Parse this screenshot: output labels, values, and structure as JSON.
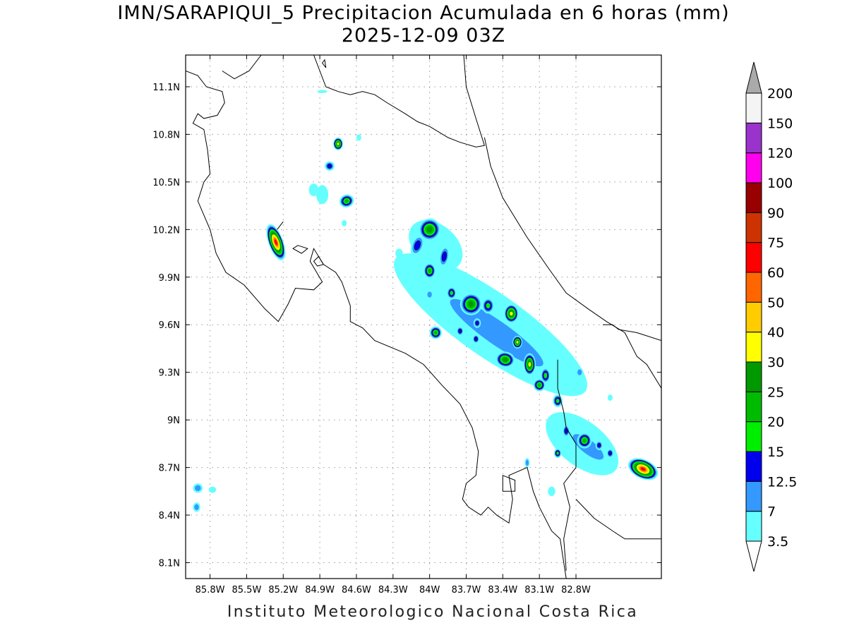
{
  "title": {
    "line1": "IMN/SARAPIQUI_5 Precipitacion Acumulada en 6 horas (mm)",
    "line2": "2025-12-09 03Z"
  },
  "credit": "Instituto Meteorologico Nacional Costa Rica",
  "map": {
    "lon_range": [
      -86.0,
      -82.1
    ],
    "lat_range": [
      8.0,
      11.3
    ],
    "lon_ticks": [
      "85.8W",
      "85.5W",
      "85.2W",
      "84.9W",
      "84.6W",
      "84.3W",
      "84W",
      "83.7W",
      "83.4W",
      "83.1W",
      "82.8W"
    ],
    "lon_tick_values": [
      -85.8,
      -85.5,
      -85.2,
      -84.9,
      -84.6,
      -84.3,
      -84.0,
      -83.7,
      -83.4,
      -83.1,
      -82.8
    ],
    "lat_ticks": [
      "11.1N",
      "10.8N",
      "10.5N",
      "10.2N",
      "9.9N",
      "9.6N",
      "9.3N",
      "9N",
      "8.7N",
      "8.4N",
      "8.1N"
    ],
    "lat_tick_values": [
      11.1,
      10.8,
      10.5,
      10.2,
      9.9,
      9.6,
      9.3,
      9.0,
      8.7,
      8.4,
      8.1
    ],
    "grid": "dotted"
  },
  "colorbar": {
    "labels": [
      "3.5",
      "7",
      "12.5",
      "15",
      "20",
      "25",
      "30",
      "40",
      "50",
      "60",
      "75",
      "90",
      "100",
      "120",
      "150",
      "200"
    ],
    "colors": [
      "#66ffff",
      "#3399ff",
      "#0000ee",
      "#00ee00",
      "#00bb00",
      "#009900",
      "#ffff00",
      "#ffcc00",
      "#ff6600",
      "#ff0000",
      "#cc3300",
      "#990000",
      "#ff00ee",
      "#9933cc",
      "#f4f4f4"
    ],
    "over_color": "#aaaaaa",
    "under_color": "#ffffff"
  },
  "levels": [
    "#66ffff",
    "#3399ff",
    "#0000ee",
    "#00ee00",
    "#00bb00",
    "#009900",
    "#ffff00",
    "#ffcc00",
    "#ff6600",
    "#ff0000",
    "#cc3300",
    "#990000"
  ],
  "blobs": [
    {
      "lon": -85.26,
      "lat": 10.12,
      "rx": 0.06,
      "ry": 0.12,
      "rot": -20,
      "level": 9
    },
    {
      "lon": -84.75,
      "lat": 10.74,
      "rx": 0.04,
      "ry": 0.04,
      "rot": 0,
      "level": 6
    },
    {
      "lon": -84.82,
      "lat": 10.6,
      "rx": 0.04,
      "ry": 0.03,
      "rot": 0,
      "level": 2
    },
    {
      "lon": -84.68,
      "lat": 10.38,
      "rx": 0.06,
      "ry": 0.04,
      "rot": -20,
      "level": 4
    },
    {
      "lon": -84.95,
      "lat": 10.45,
      "rx": 0.04,
      "ry": 0.04,
      "rot": 0,
      "level": 0
    },
    {
      "lon": -84.88,
      "lat": 10.42,
      "rx": 0.05,
      "ry": 0.06,
      "rot": 0,
      "level": 0
    },
    {
      "lon": -84.7,
      "lat": 10.24,
      "rx": 0.02,
      "ry": 0.02,
      "rot": 0,
      "level": 0
    },
    {
      "lon": -84.58,
      "lat": 10.78,
      "rx": 0.02,
      "ry": 0.02,
      "rot": 0,
      "level": 0
    },
    {
      "lon": -84.88,
      "lat": 11.07,
      "rx": 0.04,
      "ry": 0.01,
      "rot": 0,
      "level": 0
    },
    {
      "lon": -84.0,
      "lat": 10.2,
      "rx": 0.09,
      "ry": 0.07,
      "rot": 30,
      "level": 5
    },
    {
      "lon": -84.1,
      "lat": 10.1,
      "rx": 0.05,
      "ry": 0.07,
      "rot": 20,
      "level": 2
    },
    {
      "lon": -84.0,
      "lat": 9.94,
      "rx": 0.05,
      "ry": 0.05,
      "rot": 0,
      "level": 4
    },
    {
      "lon": -83.88,
      "lat": 10.03,
      "rx": 0.04,
      "ry": 0.07,
      "rot": 10,
      "level": 2
    },
    {
      "lon": -83.82,
      "lat": 9.8,
      "rx": 0.04,
      "ry": 0.04,
      "rot": 0,
      "level": 3
    },
    {
      "lon": -84.0,
      "lat": 9.79,
      "rx": 0.03,
      "ry": 0.03,
      "rot": 0,
      "level": 1
    },
    {
      "lon": -84.25,
      "lat": 10.05,
      "rx": 0.03,
      "ry": 0.03,
      "rot": 0,
      "level": 0
    },
    {
      "lon": -83.66,
      "lat": 9.73,
      "rx": 0.09,
      "ry": 0.07,
      "rot": 10,
      "level": 5
    },
    {
      "lon": -83.52,
      "lat": 9.72,
      "rx": 0.05,
      "ry": 0.05,
      "rot": 0,
      "level": 3
    },
    {
      "lon": -83.33,
      "lat": 9.67,
      "rx": 0.06,
      "ry": 0.06,
      "rot": 0,
      "level": 6
    },
    {
      "lon": -83.61,
      "lat": 9.61,
      "rx": 0.03,
      "ry": 0.03,
      "rot": 0,
      "level": 2
    },
    {
      "lon": -83.95,
      "lat": 9.55,
      "rx": 0.05,
      "ry": 0.04,
      "rot": 0,
      "level": 4
    },
    {
      "lon": -83.75,
      "lat": 9.56,
      "rx": 0.03,
      "ry": 0.03,
      "rot": 0,
      "level": 2
    },
    {
      "lon": -83.62,
      "lat": 9.51,
      "rx": 0.03,
      "ry": 0.03,
      "rot": 0,
      "level": 2
    },
    {
      "lon": -83.28,
      "lat": 9.49,
      "rx": 0.04,
      "ry": 0.04,
      "rot": 0,
      "level": 6
    },
    {
      "lon": -83.38,
      "lat": 9.38,
      "rx": 0.08,
      "ry": 0.05,
      "rot": 10,
      "level": 5
    },
    {
      "lon": -83.18,
      "lat": 9.35,
      "rx": 0.05,
      "ry": 0.07,
      "rot": 0,
      "level": 6
    },
    {
      "lon": -83.05,
      "lat": 9.28,
      "rx": 0.04,
      "ry": 0.05,
      "rot": 0,
      "level": 3
    },
    {
      "lon": -83.1,
      "lat": 9.22,
      "rx": 0.05,
      "ry": 0.04,
      "rot": 0,
      "level": 4
    },
    {
      "lon": -82.95,
      "lat": 9.12,
      "rx": 0.04,
      "ry": 0.04,
      "rot": 0,
      "level": 3
    },
    {
      "lon": -82.88,
      "lat": 8.93,
      "rx": 0.03,
      "ry": 0.04,
      "rot": 0,
      "level": 2
    },
    {
      "lon": -82.73,
      "lat": 8.87,
      "rx": 0.06,
      "ry": 0.05,
      "rot": 0,
      "level": 4
    },
    {
      "lon": -82.61,
      "lat": 8.84,
      "rx": 0.03,
      "ry": 0.03,
      "rot": 0,
      "level": 2
    },
    {
      "lon": -82.95,
      "lat": 8.79,
      "rx": 0.03,
      "ry": 0.03,
      "rot": 0,
      "level": 3
    },
    {
      "lon": -82.25,
      "lat": 8.69,
      "rx": 0.13,
      "ry": 0.06,
      "rot": 25,
      "level": 9
    },
    {
      "lon": -82.52,
      "lat": 8.79,
      "rx": 0.03,
      "ry": 0.03,
      "rot": 0,
      "level": 2
    },
    {
      "lon": -82.77,
      "lat": 9.3,
      "rx": 0.03,
      "ry": 0.03,
      "rot": 0,
      "level": 1
    },
    {
      "lon": -82.52,
      "lat": 9.14,
      "rx": 0.02,
      "ry": 0.02,
      "rot": 0,
      "level": 0
    },
    {
      "lon": -83.2,
      "lat": 8.73,
      "rx": 0.02,
      "ry": 0.03,
      "rot": 0,
      "level": 1
    },
    {
      "lon": -83.0,
      "lat": 8.55,
      "rx": 0.03,
      "ry": 0.03,
      "rot": 0,
      "level": 0
    },
    {
      "lon": -85.9,
      "lat": 8.57,
      "rx": 0.04,
      "ry": 0.03,
      "rot": 0,
      "level": 1
    },
    {
      "lon": -85.91,
      "lat": 8.45,
      "rx": 0.03,
      "ry": 0.03,
      "rot": 0,
      "level": 1
    },
    {
      "lon": -85.78,
      "lat": 8.56,
      "rx": 0.03,
      "ry": 0.02,
      "rot": 0,
      "level": 0
    }
  ],
  "bands": [
    {
      "lon": -83.5,
      "lat": 9.6,
      "rx": 0.95,
      "ry": 0.2,
      "rot": 35,
      "level": 0
    },
    {
      "lon": -83.45,
      "lat": 9.55,
      "rx": 0.75,
      "ry": 0.12,
      "rot": 35,
      "level": 1
    },
    {
      "lon": -82.75,
      "lat": 8.85,
      "rx": 0.35,
      "ry": 0.14,
      "rot": 38,
      "level": 0
    },
    {
      "lon": -82.7,
      "lat": 8.83,
      "rx": 0.25,
      "ry": 0.07,
      "rot": 38,
      "level": 1
    },
    {
      "lon": -83.95,
      "lat": 10.1,
      "rx": 0.25,
      "ry": 0.13,
      "rot": 40,
      "level": 0
    }
  ],
  "coast": {
    "main": [
      [
        -86.0,
        11.2
      ],
      [
        -85.9,
        11.17
      ],
      [
        -85.83,
        11.1
      ],
      [
        -85.7,
        11.07
      ],
      [
        -85.68,
        11.0
      ],
      [
        -85.74,
        10.92
      ],
      [
        -85.85,
        10.9
      ],
      [
        -85.9,
        10.93
      ],
      [
        -85.94,
        10.87
      ],
      [
        -85.85,
        10.83
      ],
      [
        -85.82,
        10.7
      ],
      [
        -85.8,
        10.55
      ],
      [
        -85.85,
        10.5
      ],
      [
        -85.9,
        10.38
      ],
      [
        -85.8,
        10.2
      ],
      [
        -85.75,
        10.05
      ],
      [
        -85.67,
        9.93
      ],
      [
        -85.52,
        9.85
      ],
      [
        -85.35,
        9.7
      ],
      [
        -85.24,
        9.62
      ],
      [
        -85.16,
        9.73
      ],
      [
        -85.1,
        9.83
      ],
      [
        -84.95,
        9.82
      ],
      [
        -84.88,
        9.87
      ],
      [
        -84.98,
        10.0
      ],
      [
        -84.95,
        10.08
      ],
      [
        -84.87,
        9.98
      ],
      [
        -84.77,
        9.93
      ],
      [
        -84.72,
        9.87
      ],
      [
        -84.65,
        9.72
      ],
      [
        -84.65,
        9.62
      ],
      [
        -84.55,
        9.58
      ],
      [
        -84.45,
        9.5
      ],
      [
        -84.2,
        9.42
      ],
      [
        -84.05,
        9.35
      ],
      [
        -83.9,
        9.22
      ],
      [
        -83.75,
        9.1
      ],
      [
        -83.65,
        8.95
      ],
      [
        -83.6,
        8.8
      ],
      [
        -83.62,
        8.65
      ],
      [
        -83.7,
        8.6
      ],
      [
        -83.73,
        8.5
      ],
      [
        -83.68,
        8.45
      ],
      [
        -83.58,
        8.4
      ],
      [
        -83.52,
        8.45
      ],
      [
        -83.45,
        8.4
      ],
      [
        -83.35,
        8.35
      ],
      [
        -83.32,
        8.5
      ],
      [
        -83.35,
        8.65
      ],
      [
        -83.2,
        8.7
      ],
      [
        -83.15,
        8.55
      ],
      [
        -83.1,
        8.45
      ],
      [
        -83.0,
        8.3
      ],
      [
        -82.93,
        8.25
      ],
      [
        -82.9,
        8.1
      ],
      [
        -82.88,
        8.0
      ]
    ],
    "north": [
      [
        -85.7,
        11.2
      ],
      [
        -85.6,
        11.15
      ],
      [
        -85.48,
        11.2
      ],
      [
        -85.38,
        11.3
      ]
    ],
    "lake": [
      [
        -84.95,
        11.3
      ],
      [
        -84.9,
        11.2
      ],
      [
        -84.85,
        11.1
      ],
      [
        -84.75,
        11.07
      ],
      [
        -84.65,
        11.05
      ],
      [
        -84.55,
        11.07
      ],
      [
        -84.45,
        11.05
      ],
      [
        -84.35,
        11.0
      ],
      [
        -84.2,
        10.93
      ],
      [
        -84.1,
        10.88
      ],
      [
        -84.0,
        10.85
      ],
      [
        -83.85,
        10.78
      ],
      [
        -83.75,
        10.75
      ],
      [
        -83.62,
        10.72
      ],
      [
        -83.55,
        10.73
      ],
      [
        -83.62,
        10.9
      ],
      [
        -83.7,
        11.1
      ],
      [
        -83.72,
        11.3
      ]
    ],
    "east": [
      [
        -83.55,
        10.78
      ],
      [
        -83.5,
        10.6
      ],
      [
        -83.4,
        10.4
      ],
      [
        -83.2,
        10.15
      ],
      [
        -83.02,
        9.95
      ],
      [
        -82.88,
        9.8
      ],
      [
        -82.7,
        9.7
      ],
      [
        -82.55,
        9.62
      ],
      [
        -82.4,
        9.55
      ],
      [
        -82.3,
        9.4
      ],
      [
        -82.22,
        9.35
      ],
      [
        -82.1,
        9.2
      ]
    ],
    "panama_border": [
      [
        -82.95,
        9.38
      ],
      [
        -82.95,
        9.2
      ],
      [
        -82.9,
        9.05
      ],
      [
        -82.88,
        8.95
      ],
      [
        -82.8,
        8.85
      ],
      [
        -82.8,
        8.7
      ],
      [
        -82.9,
        8.6
      ],
      [
        -82.85,
        8.45
      ],
      [
        -82.9,
        8.25
      ],
      [
        -82.88,
        8.05
      ]
    ],
    "nica_border": [
      [
        -85.2,
        10.25
      ],
      [
        -85.25,
        10.2
      ]
    ],
    "border_east": [
      [
        -82.58,
        9.6
      ],
      [
        -82.5,
        9.6
      ],
      [
        -82.45,
        9.57
      ],
      [
        -82.3,
        9.55
      ],
      [
        -82.1,
        9.5
      ]
    ],
    "panama_coast": [
      [
        -82.8,
        8.5
      ],
      [
        -82.65,
        8.38
      ],
      [
        -82.5,
        8.3
      ],
      [
        -82.4,
        8.25
      ],
      [
        -82.1,
        8.25
      ]
    ]
  },
  "islands": [
    [
      [
        -84.95,
        10.0
      ],
      [
        -84.92,
        9.97
      ],
      [
        -84.87,
        9.98
      ],
      [
        -84.91,
        10.03
      ]
    ],
    [
      [
        -84.88,
        11.25
      ],
      [
        -84.85,
        11.22
      ],
      [
        -84.86,
        11.27
      ]
    ],
    [
      [
        -85.08,
        10.1
      ],
      [
        -85.0,
        10.08
      ],
      [
        -85.05,
        10.05
      ],
      [
        -85.12,
        10.08
      ]
    ],
    [
      [
        -83.4,
        8.65
      ],
      [
        -83.3,
        8.62
      ],
      [
        -83.3,
        8.55
      ],
      [
        -83.4,
        8.55
      ]
    ]
  ]
}
